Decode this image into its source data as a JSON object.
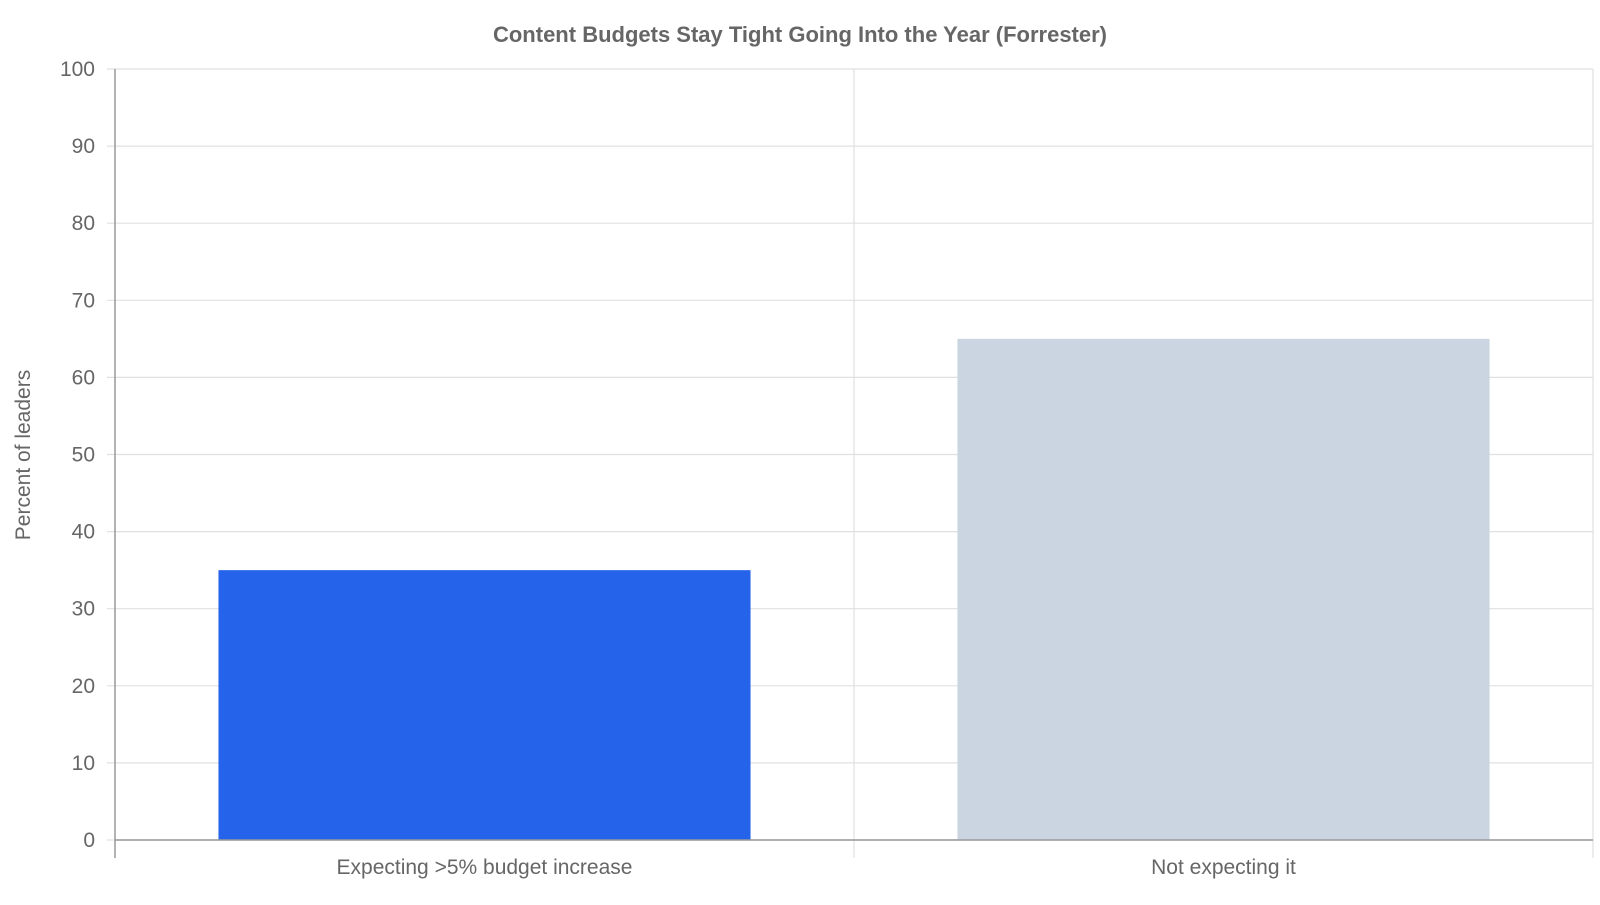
{
  "chart_data": {
    "type": "bar",
    "title": "Content Budgets Stay Tight Going Into the Year (Forrester)",
    "xlabel": "",
    "ylabel": "Percent of leaders",
    "categories": [
      "Expecting >5% budget increase",
      "Not expecting it"
    ],
    "values": [
      35,
      65
    ],
    "colors": [
      "#2563eb",
      "#cbd5e1"
    ],
    "ylim": [
      0,
      100
    ],
    "yticks": [
      "0",
      "10",
      "20",
      "30",
      "40",
      "50",
      "60",
      "70",
      "80",
      "90",
      "100"
    ],
    "grid": true,
    "legend": "none"
  }
}
